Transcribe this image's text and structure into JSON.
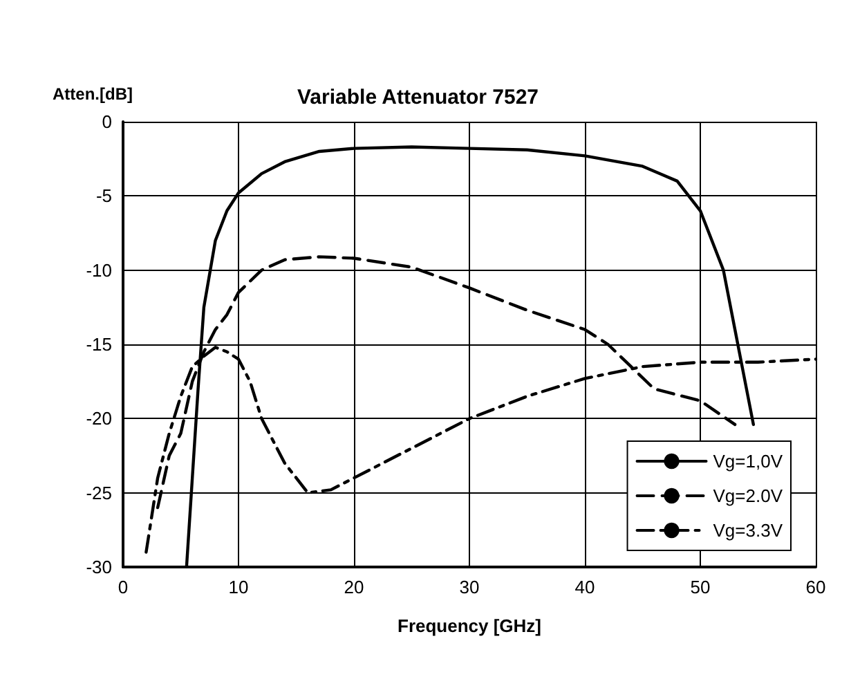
{
  "chart_data": {
    "type": "line",
    "title": "Variable Attenuator 7527",
    "xlabel": "Frequency [GHz]",
    "ylabel": "Atten.[dB]",
    "xlim": [
      0,
      60
    ],
    "xticks": [
      0,
      10,
      20,
      30,
      40,
      50,
      60
    ],
    "ylim": [
      -30,
      0
    ],
    "yticks": [
      -30,
      -25,
      -20,
      -15,
      -10,
      -5,
      0
    ],
    "grid": true,
    "legend": "bottom right",
    "marker": "none",
    "series": [
      {
        "name": "Vg=1,0V",
        "color": "#000000",
        "line_style": "solid",
        "x": [
          5.5,
          6,
          6.5,
          7,
          8,
          9,
          10,
          12,
          14,
          17,
          20,
          25,
          30,
          35,
          40,
          45,
          48,
          50,
          52,
          53,
          54,
          54.6
        ],
        "values": [
          -30,
          -24,
          -18,
          -12.5,
          -8,
          -6,
          -4.8,
          -3.5,
          -2.7,
          -2,
          -1.8,
          -1.7,
          -1.8,
          -1.9,
          -2.3,
          -3,
          -4,
          -6,
          -10,
          -14,
          -18,
          -20.4
        ]
      },
      {
        "name": "Vg=2.0V",
        "color": "#000000",
        "line_style": "dashed",
        "x": [
          3,
          4,
          5,
          6,
          7,
          8,
          9,
          10,
          12,
          14,
          17,
          20,
          25,
          30,
          35,
          40,
          42,
          44,
          46,
          50,
          53
        ],
        "values": [
          -26,
          -22.5,
          -21,
          -17.5,
          -15.5,
          -14,
          -13,
          -11.5,
          -10,
          -9.3,
          -9.1,
          -9.2,
          -9.8,
          -11.2,
          -12.7,
          -14,
          -15,
          -16.5,
          -18,
          -18.8,
          -20.4
        ]
      },
      {
        "name": "Vg=3.3V",
        "color": "#000000",
        "line_style": "dashdot",
        "x": [
          2,
          3,
          4,
          5,
          6,
          7,
          8,
          9,
          10,
          11,
          12,
          14,
          16,
          18,
          20,
          25,
          30,
          35,
          40,
          45,
          50,
          55,
          60
        ],
        "values": [
          -29,
          -24,
          -21,
          -18.5,
          -16.5,
          -15.8,
          -15.2,
          -15.5,
          -16,
          -17.5,
          -20,
          -23,
          -25,
          -24.8,
          -24,
          -22,
          -20,
          -18.5,
          -17.3,
          -16.5,
          -16.2,
          -16.2,
          -16
        ]
      }
    ]
  }
}
